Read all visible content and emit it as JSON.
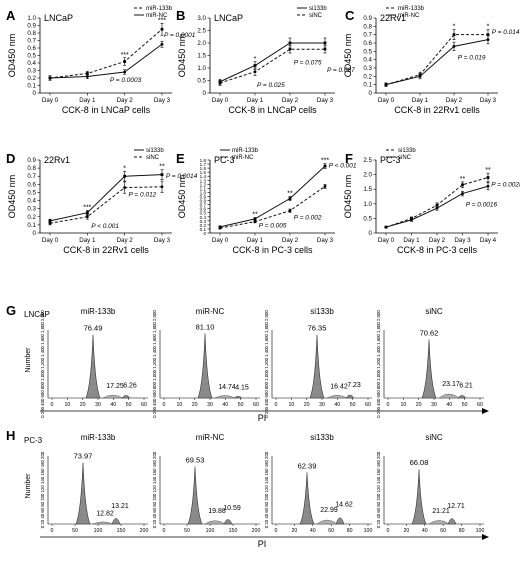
{
  "chart_data": [
    {
      "panel": "A",
      "type": "line",
      "cell_label": "LNCaP",
      "xlabel": "CCK-8 in LNCaP cells",
      "ylabel": "OD450 nm",
      "categories": [
        "Day 0",
        "Day 1",
        "Day 2",
        "Day 3"
      ],
      "yticks": [
        "0",
        "0.1",
        "0.2",
        "0.3",
        "0.4",
        "0.5",
        "0.6",
        "0.7",
        "0.8",
        "0.9",
        "1.0"
      ],
      "ylim": [
        0,
        1.0
      ],
      "legend": "top-right",
      "series": [
        {
          "name": "miR-133b",
          "style": "dashed",
          "values": [
            0.2,
            0.26,
            0.42,
            0.85
          ],
          "errors": [
            0.03,
            0.03,
            0.05,
            0.08
          ]
        },
        {
          "name": "miR-NC",
          "style": "solid",
          "values": [
            0.2,
            0.22,
            0.28,
            0.65
          ],
          "errors": [
            0.03,
            0.03,
            0.03,
            0.04
          ]
        }
      ],
      "sig": [
        "",
        "",
        "***",
        "***"
      ],
      "annotations": [
        {
          "text": "P = 0.0001",
          "at": [
            3,
            0.75
          ]
        },
        {
          "text": "P = 0.0003",
          "at": [
            1.55,
            0.15
          ]
        }
      ]
    },
    {
      "panel": "B",
      "type": "line",
      "cell_label": "LNCaP",
      "xlabel": "CCK-8 in LNCaP cells",
      "ylabel": "OD450 nm",
      "categories": [
        "Day 0",
        "Day 1",
        "Day 2",
        "Day 3"
      ],
      "yticks": [
        "0",
        "0.5",
        "1.0",
        "1.5",
        "2.0",
        "2.5",
        "3.0"
      ],
      "ylim": [
        0,
        3.0
      ],
      "legend": "top-right",
      "series": [
        {
          "name": "si133b",
          "style": "solid",
          "values": [
            0.45,
            1.1,
            2.0,
            2.0
          ],
          "errors": [
            0.1,
            0.15,
            0.2,
            0.2
          ]
        },
        {
          "name": "siNC",
          "style": "dashed",
          "values": [
            0.4,
            0.85,
            1.75,
            1.75
          ],
          "errors": [
            0.1,
            0.15,
            0.15,
            0.15
          ]
        }
      ],
      "sig": [
        "",
        "*",
        "",
        ""
      ],
      "annotations": [
        {
          "text": "P = 0.075",
          "at": [
            2.05,
            1.15
          ]
        },
        {
          "text": "P = 0.087",
          "at": [
            3.0,
            0.85
          ]
        },
        {
          "text": "P = 0.025",
          "at": [
            1.0,
            0.25
          ]
        }
      ]
    },
    {
      "panel": "C",
      "type": "line",
      "cell_label": "22Rv1",
      "xlabel": "CCK-8 in 22Rv1 cells",
      "ylabel": "OD450 nm",
      "categories": [
        "Day 0",
        "Day 1",
        "Day 2",
        "Day 3"
      ],
      "yticks": [
        "0",
        "0.1",
        "0.2",
        "0.3",
        "0.4",
        "0.5",
        "0.6",
        "0.7",
        "0.8",
        "0.9"
      ],
      "ylim": [
        0,
        0.9
      ],
      "legend": "top-left",
      "series": [
        {
          "name": "miR-133b",
          "style": "dashed",
          "values": [
            0.1,
            0.22,
            0.7,
            0.7
          ],
          "errors": [
            0.02,
            0.03,
            0.06,
            0.06
          ]
        },
        {
          "name": "miR-NC",
          "style": "solid",
          "values": [
            0.1,
            0.2,
            0.56,
            0.64
          ],
          "errors": [
            0.02,
            0.03,
            0.05,
            0.05
          ]
        }
      ],
      "sig": [
        "",
        "",
        "*",
        "*"
      ],
      "annotations": [
        {
          "text": "P = 0.014",
          "at": [
            3.05,
            0.71
          ]
        },
        {
          "text": "P = 0.019",
          "at": [
            2.05,
            0.4
          ]
        }
      ]
    },
    {
      "panel": "D",
      "type": "line",
      "cell_label": "22Rv1",
      "xlabel": "CCK-8 in 22Rv1 cells",
      "ylabel": "OD450 nm",
      "categories": [
        "Day 0",
        "Day 1",
        "Day 2",
        "Day 3"
      ],
      "yticks": [
        "0",
        "0.1",
        "0.2",
        "0.3",
        "0.4",
        "0.5",
        "0.6",
        "0.7",
        "0.8",
        "0.9"
      ],
      "ylim": [
        0,
        0.9
      ],
      "legend": "top-right",
      "series": [
        {
          "name": "si133b",
          "style": "solid",
          "values": [
            0.15,
            0.25,
            0.7,
            0.72
          ],
          "errors": [
            0.02,
            0.03,
            0.06,
            0.06
          ]
        },
        {
          "name": "siNC",
          "style": "dashed",
          "values": [
            0.12,
            0.2,
            0.56,
            0.57
          ],
          "errors": [
            0.02,
            0.03,
            0.07,
            0.07
          ]
        }
      ],
      "sig": [
        "",
        "***",
        "*",
        "**"
      ],
      "annotations": [
        {
          "text": "P = 0.0014",
          "at": [
            3.05,
            0.68
          ]
        },
        {
          "text": "P = 0.012",
          "at": [
            2.05,
            0.45
          ]
        },
        {
          "text": "P < 0.001",
          "at": [
            1.05,
            0.06
          ]
        }
      ]
    },
    {
      "panel": "E",
      "type": "line",
      "cell_label": "PC-3",
      "xlabel": "CCK-8 in PC-3 cells",
      "ylabel": "OD450 nm",
      "categories": [
        "Day 0",
        "Day 1",
        "Day 2",
        "Day 3"
      ],
      "yticks": [
        "0",
        "0.1",
        "0.2",
        "0.3",
        "0.4",
        "0.5",
        "0.6",
        "0.7",
        "0.8",
        "0.9",
        "1.0",
        "1.1",
        "1.2",
        "1.3",
        "1.4",
        "1.5",
        "1.6",
        "1.7",
        "1.8"
      ],
      "ylim": [
        0,
        1.8
      ],
      "legend": "top-left",
      "series": [
        {
          "name": "miR-133b",
          "style": "solid",
          "values": [
            0.15,
            0.35,
            0.85,
            1.65
          ],
          "errors": [
            0.02,
            0.03,
            0.05,
            0.06
          ]
        },
        {
          "name": "miR-NC",
          "style": "dashed",
          "values": [
            0.12,
            0.28,
            0.55,
            1.15
          ],
          "errors": [
            0.02,
            0.03,
            0.04,
            0.05
          ]
        }
      ],
      "sig": [
        "",
        "**",
        "**",
        "***"
      ],
      "annotations": [
        {
          "text": "P < 0.001",
          "at": [
            3.05,
            1.62
          ]
        },
        {
          "text": "P = 0.002",
          "at": [
            2.05,
            0.33
          ]
        },
        {
          "text": "P = 0.005",
          "at": [
            1.05,
            0.13
          ]
        }
      ]
    },
    {
      "panel": "F",
      "type": "line",
      "cell_label": "PC-3",
      "xlabel": "CCK-8 in PC-3 cells",
      "ylabel": "OD450 nm",
      "categories": [
        "Day 0",
        "Day 1",
        "Day 2",
        "Day 3",
        "Day 4"
      ],
      "yticks": [
        "0",
        "0.5",
        "1.0",
        "1.5",
        "2.0",
        "2.5"
      ],
      "ylim": [
        0,
        2.5
      ],
      "legend": "top-left",
      "series": [
        {
          "name": "si133b",
          "style": "dashed",
          "values": [
            0.2,
            0.5,
            0.95,
            1.65,
            1.9
          ],
          "errors": [
            0.03,
            0.05,
            0.08,
            0.1,
            0.15
          ]
        },
        {
          "name": "siNC",
          "style": "solid",
          "values": [
            0.2,
            0.45,
            0.85,
            1.35,
            1.6
          ],
          "errors": [
            0.03,
            0.05,
            0.07,
            0.08,
            0.12
          ]
        }
      ],
      "sig": [
        "",
        "",
        "",
        "**",
        "**"
      ],
      "annotations": [
        {
          "text": "P = 0.0028",
          "at": [
            4.05,
            1.6
          ]
        },
        {
          "text": "P = 0.0016",
          "at": [
            3.05,
            0.9
          ]
        }
      ]
    },
    {
      "panel": "G",
      "type": "histogram",
      "cell_label": "LNCaP",
      "xlabel": "PI",
      "ylabel": "Number",
      "yticks": [
        "0",
        "200",
        "400",
        "600",
        "800",
        "1,000",
        "1,200",
        "1,400",
        "1,600",
        "1,800",
        "2,000"
      ],
      "xticks": [
        "0",
        "10",
        "20",
        "30",
        "40",
        "50",
        "60"
      ],
      "xlim": [
        0,
        60
      ],
      "ylim": [
        0,
        2000
      ],
      "plots": [
        {
          "name": "miR-133b",
          "g1": 76.49,
          "s": 17.25,
          "g2m": 6.26
        },
        {
          "name": "miR-NC",
          "g1": 81.1,
          "s": 14.74,
          "g2m": 4.15
        },
        {
          "name": "si133b",
          "g1": 76.35,
          "s": 16.42,
          "g2m": 7.23
        },
        {
          "name": "siNC",
          "g1": 70.62,
          "s": 23.17,
          "g2m": 6.21
        }
      ]
    },
    {
      "panel": "H",
      "type": "histogram",
      "cell_label": "PC-3",
      "xlabel": "PI",
      "ylabel": "Number",
      "yticks": [
        "0",
        "20",
        "40",
        "60",
        "80",
        "100",
        "120",
        "140",
        "160",
        "180",
        "200"
      ],
      "xticks_sets": [
        [
          "0",
          "50",
          "100",
          "150",
          "200"
        ],
        [
          "0",
          "50",
          "100",
          "150",
          "200"
        ],
        [
          "0",
          "20",
          "40",
          "60",
          "80",
          "100"
        ],
        [
          "0",
          "20",
          "40",
          "60",
          "80",
          "100"
        ]
      ],
      "xlim_sets": [
        [
          0,
          200
        ],
        [
          0,
          200
        ],
        [
          0,
          100
        ],
        [
          0,
          100
        ]
      ],
      "ylim": [
        0,
        200
      ],
      "plots": [
        {
          "name": "miR-133b",
          "g1": 73.97,
          "s": 12.82,
          "g2m": 13.21
        },
        {
          "name": "miR-NC",
          "g1": 69.53,
          "s": 19.88,
          "g2m": 10.59
        },
        {
          "name": "si133b",
          "g1": 62.39,
          "s": 22.99,
          "g2m": 14.62
        },
        {
          "name": "siNC",
          "g1": 66.08,
          "s": 21.21,
          "g2m": 12.71
        }
      ]
    }
  ]
}
